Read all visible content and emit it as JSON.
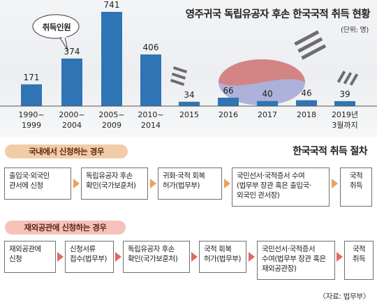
{
  "chart_data": {
    "type": "bar",
    "title": "영주귀국 독립유공자 후손 한국국적 취득 현황",
    "unit": "(단위: 명)",
    "categories": [
      [
        "1990~",
        "1999"
      ],
      [
        "2000~",
        "2004"
      ],
      [
        "2005~",
        "2009"
      ],
      [
        "2010~",
        "2014"
      ],
      [
        "2015"
      ],
      [
        "2016"
      ],
      [
        "2017"
      ],
      [
        "2018"
      ],
      [
        "2019년",
        "3월까지"
      ]
    ],
    "values": [
      171,
      374,
      741,
      406,
      34,
      66,
      40,
      46,
      39
    ],
    "series": [
      {
        "name": "취득인원",
        "values": [
          171,
          374,
          741,
          406,
          34,
          66,
          40,
          46,
          39
        ]
      }
    ],
    "bar_color": "#2f74b5",
    "ylim": [
      0,
      741
    ]
  },
  "flow": {
    "title": "한국국적 취득 절차",
    "domestic": {
      "label": "국내에서 신청하는 경우",
      "steps": [
        "출입국·외국인\n관서에 신청",
        "독립유공자 후손\n확인(국가보훈처)",
        "귀화·국적 회복\n허가(법무부)",
        "국민선서·국적증서 수여\n(법무부 장관 혹은 출입국·\n외국인 관서장)",
        "국적\n취득"
      ]
    },
    "overseas": {
      "label": "재외공관에 신청하는 경우",
      "steps": [
        "재외공관에\n신청",
        "신청서류\n접수(법무부)",
        "독립유공자 후손\n확인(국가보훈처)",
        "국적 회복\n허가(법무부)",
        "국민선서·국적증서\n수여(법무부 장관 혹은\n재외공관장)",
        "국적\n취득"
      ]
    }
  },
  "source": "〈자료: 법무부〉",
  "colors": {
    "domestic_accent": "#e7a25c",
    "overseas_accent": "#de6b61"
  }
}
